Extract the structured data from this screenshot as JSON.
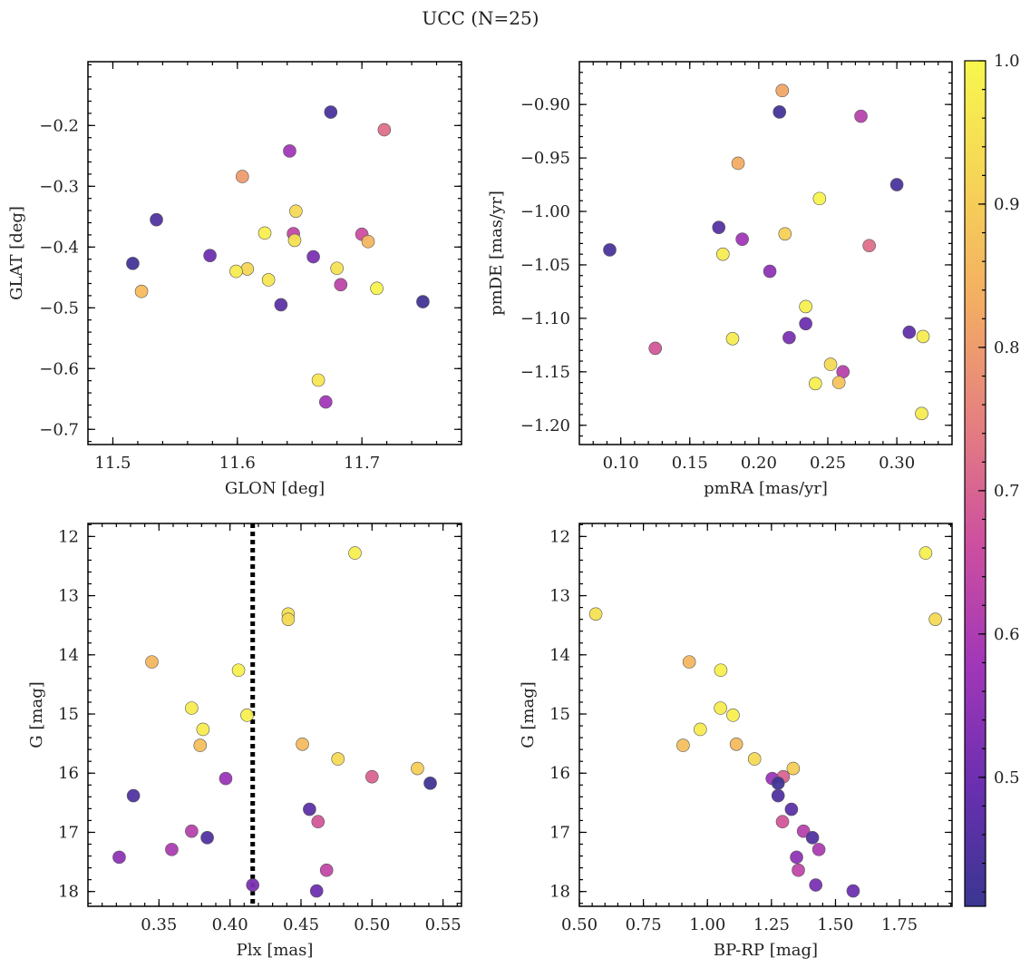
{
  "title": "UCC (N=25)",
  "colorbar": {
    "min": 0.41,
    "max": 1.0,
    "ticks": [
      0.5,
      0.6,
      0.7,
      0.8,
      0.9,
      1.0
    ],
    "tick_labels": [
      "0.5",
      "0.6",
      "0.7",
      "0.8",
      "0.9",
      "1.0"
    ],
    "colormap": "plasma",
    "cmap_colors": [
      "#3a3691",
      "#6a2fb0",
      "#a137b8",
      "#cd4f9f",
      "#e57f80",
      "#f3ad63",
      "#f6d456",
      "#f7f74e"
    ]
  },
  "chart_data": [
    {
      "type": "scatter",
      "xlabel": "GLON [deg]",
      "ylabel": "GLAT [deg]",
      "xlim": [
        11.48,
        11.78
      ],
      "ylim": [
        -0.725,
        -0.095
      ],
      "yinvert": false,
      "xticks": [
        11.5,
        11.6,
        11.7
      ],
      "xtick_labels": [
        "11.5",
        "11.6",
        "11.7"
      ],
      "yticks": [
        -0.7,
        -0.6,
        -0.5,
        -0.4,
        -0.3,
        -0.2
      ],
      "ytick_labels": [
        "−0.7",
        "−0.6",
        "−0.5",
        "−0.4",
        "−0.3",
        "−0.2"
      ],
      "xminor": 0.02,
      "yminor": 0.02,
      "points": [
        {
          "x": 11.675,
          "y": -0.178,
          "c": 0.44
        },
        {
          "x": 11.718,
          "y": -0.207,
          "c": 0.72
        },
        {
          "x": 11.642,
          "y": -0.242,
          "c": 0.58
        },
        {
          "x": 11.604,
          "y": -0.284,
          "c": 0.8
        },
        {
          "x": 11.647,
          "y": -0.341,
          "c": 0.93
        },
        {
          "x": 11.535,
          "y": -0.355,
          "c": 0.45
        },
        {
          "x": 11.622,
          "y": -0.377,
          "c": 0.98
        },
        {
          "x": 11.645,
          "y": -0.378,
          "c": 0.64
        },
        {
          "x": 11.7,
          "y": -0.379,
          "c": 0.66
        },
        {
          "x": 11.646,
          "y": -0.389,
          "c": 0.95
        },
        {
          "x": 11.705,
          "y": -0.391,
          "c": 0.85
        },
        {
          "x": 11.578,
          "y": -0.414,
          "c": 0.5
        },
        {
          "x": 11.661,
          "y": -0.416,
          "c": 0.52
        },
        {
          "x": 11.516,
          "y": -0.427,
          "c": 0.43
        },
        {
          "x": 11.68,
          "y": -0.435,
          "c": 0.95
        },
        {
          "x": 11.608,
          "y": -0.436,
          "c": 0.92
        },
        {
          "x": 11.599,
          "y": -0.44,
          "c": 0.97
        },
        {
          "x": 11.625,
          "y": -0.454,
          "c": 0.96
        },
        {
          "x": 11.683,
          "y": -0.462,
          "c": 0.63
        },
        {
          "x": 11.712,
          "y": -0.468,
          "c": 0.99
        },
        {
          "x": 11.523,
          "y": -0.473,
          "c": 0.86
        },
        {
          "x": 11.749,
          "y": -0.49,
          "c": 0.42
        },
        {
          "x": 11.635,
          "y": -0.495,
          "c": 0.47
        },
        {
          "x": 11.665,
          "y": -0.619,
          "c": 0.96
        },
        {
          "x": 11.671,
          "y": -0.655,
          "c": 0.58
        }
      ]
    },
    {
      "type": "scatter",
      "xlabel": "pmRA [mas/yr]",
      "ylabel": "pmDE [mas/yr]",
      "xlim": [
        0.07,
        0.34
      ],
      "ylim": [
        -1.218,
        -0.86
      ],
      "yinvert": false,
      "xticks": [
        0.1,
        0.15,
        0.2,
        0.25,
        0.3
      ],
      "xtick_labels": [
        "0.10",
        "0.15",
        "0.20",
        "0.25",
        "0.30"
      ],
      "yticks": [
        -1.2,
        -1.15,
        -1.1,
        -1.05,
        -1.0,
        -0.95,
        -0.9
      ],
      "ytick_labels": [
        "−1.20",
        "−1.15",
        "−1.10",
        "−1.05",
        "−1.00",
        "−0.95",
        "−0.90"
      ],
      "xminor": 0.01,
      "yminor": 0.01,
      "points": [
        {
          "x": 0.217,
          "y": -0.887,
          "c": 0.82
        },
        {
          "x": 0.215,
          "y": -0.907,
          "c": 0.43
        },
        {
          "x": 0.274,
          "y": -0.911,
          "c": 0.62
        },
        {
          "x": 0.185,
          "y": -0.955,
          "c": 0.83
        },
        {
          "x": 0.3,
          "y": -0.975,
          "c": 0.44
        },
        {
          "x": 0.244,
          "y": -0.988,
          "c": 0.99
        },
        {
          "x": 0.171,
          "y": -1.015,
          "c": 0.46
        },
        {
          "x": 0.219,
          "y": -1.021,
          "c": 0.91
        },
        {
          "x": 0.188,
          "y": -1.026,
          "c": 0.58
        },
        {
          "x": 0.28,
          "y": -1.032,
          "c": 0.72
        },
        {
          "x": 0.092,
          "y": -1.036,
          "c": 0.44
        },
        {
          "x": 0.174,
          "y": -1.04,
          "c": 0.97
        },
        {
          "x": 0.208,
          "y": -1.056,
          "c": 0.55
        },
        {
          "x": 0.234,
          "y": -1.089,
          "c": 0.98
        },
        {
          "x": 0.234,
          "y": -1.105,
          "c": 0.5
        },
        {
          "x": 0.309,
          "y": -1.113,
          "c": 0.48
        },
        {
          "x": 0.319,
          "y": -1.117,
          "c": 0.97
        },
        {
          "x": 0.222,
          "y": -1.118,
          "c": 0.52
        },
        {
          "x": 0.181,
          "y": -1.119,
          "c": 0.97
        },
        {
          "x": 0.125,
          "y": -1.128,
          "c": 0.68
        },
        {
          "x": 0.252,
          "y": -1.143,
          "c": 0.93
        },
        {
          "x": 0.261,
          "y": -1.15,
          "c": 0.62
        },
        {
          "x": 0.258,
          "y": -1.16,
          "c": 0.88
        },
        {
          "x": 0.241,
          "y": -1.161,
          "c": 0.98
        },
        {
          "x": 0.318,
          "y": -1.189,
          "c": 0.97
        }
      ]
    },
    {
      "type": "scatter",
      "xlabel": "Plx [mas]",
      "ylabel": "G [mag]",
      "xlim": [
        0.3,
        0.563
      ],
      "ylim": [
        18.25,
        11.78
      ],
      "yinvert": true,
      "xticks": [
        0.35,
        0.4,
        0.45,
        0.5,
        0.55
      ],
      "xtick_labels": [
        "0.35",
        "0.40",
        "0.45",
        "0.50",
        "0.55"
      ],
      "yticks": [
        12,
        13,
        14,
        15,
        16,
        17,
        18
      ],
      "ytick_labels": [
        "12",
        "13",
        "14",
        "15",
        "16",
        "17",
        "18"
      ],
      "xminor": 0.01,
      "yminor": 0.2,
      "vline": {
        "x": 0.416,
        "style": "dotted"
      },
      "points": [
        {
          "x": 0.488,
          "y": 12.28,
          "c": 0.98
        },
        {
          "x": 0.441,
          "y": 13.31,
          "c": 0.95
        },
        {
          "x": 0.441,
          "y": 13.4,
          "c": 0.93
        },
        {
          "x": 0.345,
          "y": 14.12,
          "c": 0.85
        },
        {
          "x": 0.406,
          "y": 14.26,
          "c": 0.98
        },
        {
          "x": 0.373,
          "y": 14.9,
          "c": 0.97
        },
        {
          "x": 0.412,
          "y": 15.02,
          "c": 0.98
        },
        {
          "x": 0.381,
          "y": 15.26,
          "c": 0.97
        },
        {
          "x": 0.379,
          "y": 15.53,
          "c": 0.87
        },
        {
          "x": 0.451,
          "y": 15.51,
          "c": 0.86
        },
        {
          "x": 0.476,
          "y": 15.76,
          "c": 0.93
        },
        {
          "x": 0.532,
          "y": 15.92,
          "c": 0.9
        },
        {
          "x": 0.5,
          "y": 16.06,
          "c": 0.7
        },
        {
          "x": 0.397,
          "y": 16.09,
          "c": 0.57
        },
        {
          "x": 0.541,
          "y": 16.17,
          "c": 0.42
        },
        {
          "x": 0.332,
          "y": 16.38,
          "c": 0.45
        },
        {
          "x": 0.456,
          "y": 16.61,
          "c": 0.47
        },
        {
          "x": 0.462,
          "y": 16.82,
          "c": 0.68
        },
        {
          "x": 0.373,
          "y": 16.98,
          "c": 0.62
        },
        {
          "x": 0.384,
          "y": 17.09,
          "c": 0.45
        },
        {
          "x": 0.359,
          "y": 17.29,
          "c": 0.6
        },
        {
          "x": 0.322,
          "y": 17.42,
          "c": 0.55
        },
        {
          "x": 0.468,
          "y": 17.64,
          "c": 0.64
        },
        {
          "x": 0.416,
          "y": 17.89,
          "c": 0.52
        },
        {
          "x": 0.461,
          "y": 17.99,
          "c": 0.5
        }
      ]
    },
    {
      "type": "scatter",
      "xlabel": "BP-RP [mag]",
      "ylabel": "G [mag]",
      "xlim": [
        0.5,
        1.955
      ],
      "ylim": [
        18.25,
        11.78
      ],
      "yinvert": true,
      "xticks": [
        0.5,
        0.75,
        1.0,
        1.25,
        1.5,
        1.75
      ],
      "xtick_labels": [
        "0.50",
        "0.75",
        "1.00",
        "1.25",
        "1.50",
        "1.75"
      ],
      "yticks": [
        12,
        13,
        14,
        15,
        16,
        17,
        18
      ],
      "ytick_labels": [
        "12",
        "13",
        "14",
        "15",
        "16",
        "17",
        "18"
      ],
      "xminor": 0.05,
      "yminor": 0.2,
      "points": [
        {
          "x": 1.852,
          "y": 12.28,
          "c": 0.98
        },
        {
          "x": 0.564,
          "y": 13.31,
          "c": 0.95
        },
        {
          "x": 1.89,
          "y": 13.4,
          "c": 0.93
        },
        {
          "x": 0.929,
          "y": 14.12,
          "c": 0.85
        },
        {
          "x": 1.052,
          "y": 14.26,
          "c": 0.98
        },
        {
          "x": 1.051,
          "y": 14.9,
          "c": 0.97
        },
        {
          "x": 1.1,
          "y": 15.02,
          "c": 0.98
        },
        {
          "x": 0.972,
          "y": 15.26,
          "c": 0.97
        },
        {
          "x": 0.905,
          "y": 15.53,
          "c": 0.87
        },
        {
          "x": 1.113,
          "y": 15.51,
          "c": 0.86
        },
        {
          "x": 1.184,
          "y": 15.76,
          "c": 0.93
        },
        {
          "x": 1.335,
          "y": 15.92,
          "c": 0.9
        },
        {
          "x": 1.296,
          "y": 16.06,
          "c": 0.7
        },
        {
          "x": 1.253,
          "y": 16.09,
          "c": 0.57
        },
        {
          "x": 1.276,
          "y": 16.17,
          "c": 0.42
        },
        {
          "x": 1.276,
          "y": 16.38,
          "c": 0.45
        },
        {
          "x": 1.328,
          "y": 16.61,
          "c": 0.47
        },
        {
          "x": 1.293,
          "y": 16.82,
          "c": 0.68
        },
        {
          "x": 1.375,
          "y": 16.98,
          "c": 0.62
        },
        {
          "x": 1.41,
          "y": 17.09,
          "c": 0.45
        },
        {
          "x": 1.435,
          "y": 17.29,
          "c": 0.6
        },
        {
          "x": 1.348,
          "y": 17.42,
          "c": 0.55
        },
        {
          "x": 1.355,
          "y": 17.64,
          "c": 0.64
        },
        {
          "x": 1.423,
          "y": 17.89,
          "c": 0.52
        },
        {
          "x": 1.569,
          "y": 17.99,
          "c": 0.5
        }
      ]
    }
  ]
}
